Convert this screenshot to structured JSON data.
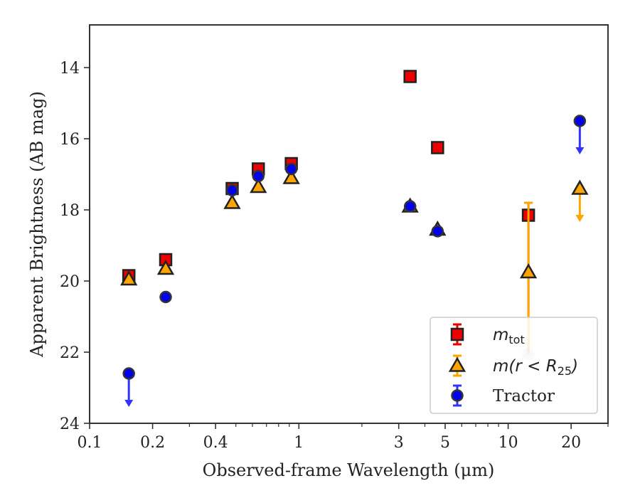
{
  "chart_data": {
    "type": "scatter",
    "xlabel": "Observed-frame Wavelength (μm)",
    "ylabel": "Apparent Brightness (AB mag)",
    "xscale": "log",
    "xlim": [
      0.1,
      30
    ],
    "ylim": [
      24,
      12.8
    ],
    "y_inverted": true,
    "grid": false,
    "legend_position": "lower-right",
    "x_ticks": [
      {
        "value": 0.1,
        "label": "0.1"
      },
      {
        "value": 0.2,
        "label": "0.2"
      },
      {
        "value": 0.4,
        "label": "0.4"
      },
      {
        "value": 1,
        "label": "1"
      },
      {
        "value": 3,
        "label": "3"
      },
      {
        "value": 5,
        "label": "5"
      },
      {
        "value": 10,
        "label": "10"
      },
      {
        "value": 20,
        "label": "20"
      }
    ],
    "y_ticks": [
      {
        "value": 14,
        "label": "14"
      },
      {
        "value": 16,
        "label": "16"
      },
      {
        "value": 18,
        "label": "18"
      },
      {
        "value": 20,
        "label": "20"
      },
      {
        "value": 22,
        "label": "22"
      },
      {
        "value": 24,
        "label": "24"
      }
    ],
    "series": [
      {
        "name": "m_tot",
        "legend_main": "m",
        "legend_sub": "tot",
        "legend_suffix": "",
        "marker": "square",
        "color": "#ee0000",
        "points": [
          {
            "x": 0.154,
            "y": 19.85
          },
          {
            "x": 0.231,
            "y": 19.4
          },
          {
            "x": 0.48,
            "y": 17.4
          },
          {
            "x": 0.64,
            "y": 16.85
          },
          {
            "x": 0.92,
            "y": 16.7
          },
          {
            "x": 3.4,
            "y": 14.25
          },
          {
            "x": 4.6,
            "y": 16.25
          },
          {
            "x": 12.5,
            "y": 18.15,
            "err_lo": 0.35,
            "err_hi": 3.9
          }
        ]
      },
      {
        "name": "m(r < R_25)",
        "legend_main": "m(r < R",
        "legend_sub": "25",
        "legend_suffix": ")",
        "marker": "triangle",
        "color": "#ffa500",
        "points": [
          {
            "x": 0.154,
            "y": 19.95
          },
          {
            "x": 0.231,
            "y": 19.65
          },
          {
            "x": 0.48,
            "y": 17.8
          },
          {
            "x": 0.64,
            "y": 17.35
          },
          {
            "x": 0.92,
            "y": 17.1
          },
          {
            "x": 3.4,
            "y": 17.9
          },
          {
            "x": 4.6,
            "y": 18.55
          },
          {
            "x": 12.5,
            "y": 19.75,
            "err_lo": 1.95,
            "err_hi": 2.3
          },
          {
            "x": 22,
            "y": 17.4,
            "upper_limit": 18.3
          }
        ]
      },
      {
        "name": "Tractor",
        "legend_main": "Tractor",
        "legend_sub": "",
        "legend_suffix": "",
        "marker": "circle",
        "color": "#0000ee",
        "points": [
          {
            "x": 0.154,
            "y": 22.6,
            "upper_limit": 23.5
          },
          {
            "x": 0.231,
            "y": 20.45
          },
          {
            "x": 0.48,
            "y": 17.45
          },
          {
            "x": 0.64,
            "y": 17.05
          },
          {
            "x": 0.92,
            "y": 16.85
          },
          {
            "x": 3.4,
            "y": 17.9
          },
          {
            "x": 4.6,
            "y": 18.6
          },
          {
            "x": 12.5,
            "y": 22.05,
            "faded": true
          },
          {
            "x": 22,
            "y": 15.5,
            "upper_limit": 16.4
          }
        ]
      }
    ]
  }
}
